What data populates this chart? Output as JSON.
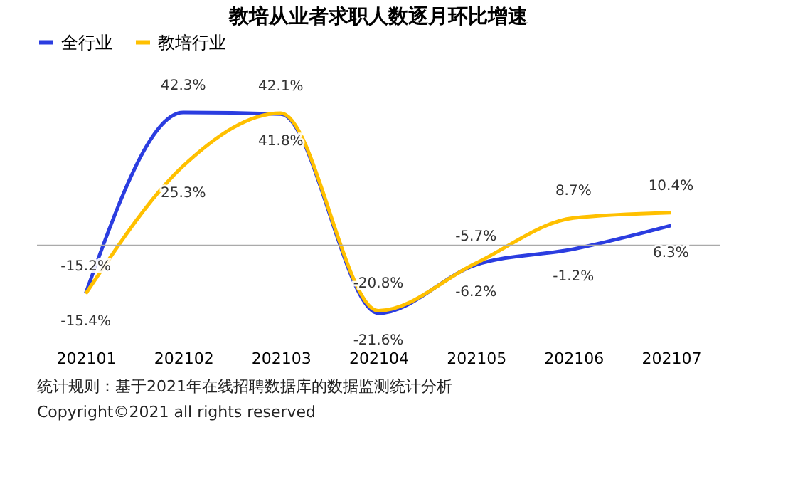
{
  "chart_data": {
    "type": "line",
    "title": "教培从业者求职人数逐月环比增速",
    "categories": [
      "202101",
      "202102",
      "202103",
      "202104",
      "202105",
      "202106",
      "202107"
    ],
    "series": [
      {
        "name": "全行业",
        "color": "#2b3de0",
        "values": [
          -15.2,
          42.3,
          41.8,
          -21.6,
          -6.2,
          -1.2,
          6.3
        ],
        "value_labels": [
          "-15.2%",
          "42.3%",
          "41.8%",
          "-21.6%",
          "-6.2%",
          "-1.2%",
          "6.3%"
        ]
      },
      {
        "name": "教培行业",
        "color": "#ffc000",
        "values": [
          -15.4,
          25.3,
          42.1,
          -20.8,
          -5.7,
          8.7,
          10.4
        ],
        "value_labels": [
          "-15.4%",
          "25.3%",
          "42.1%",
          "-20.8%",
          "-5.7%",
          "8.7%",
          "10.4%"
        ]
      }
    ],
    "legend": "top",
    "grid": false,
    "tick_labels": "x",
    "marker": "none",
    "line_style": "solid",
    "ref_lines": [
      {
        "axis": "y",
        "value": 0,
        "color": "#aaaaaa"
      }
    ],
    "annotations": [
      "统计规则：基于2021年在线招聘数据库的数据监测统计分析",
      "Copyright©2021 all rights reserved"
    ]
  }
}
